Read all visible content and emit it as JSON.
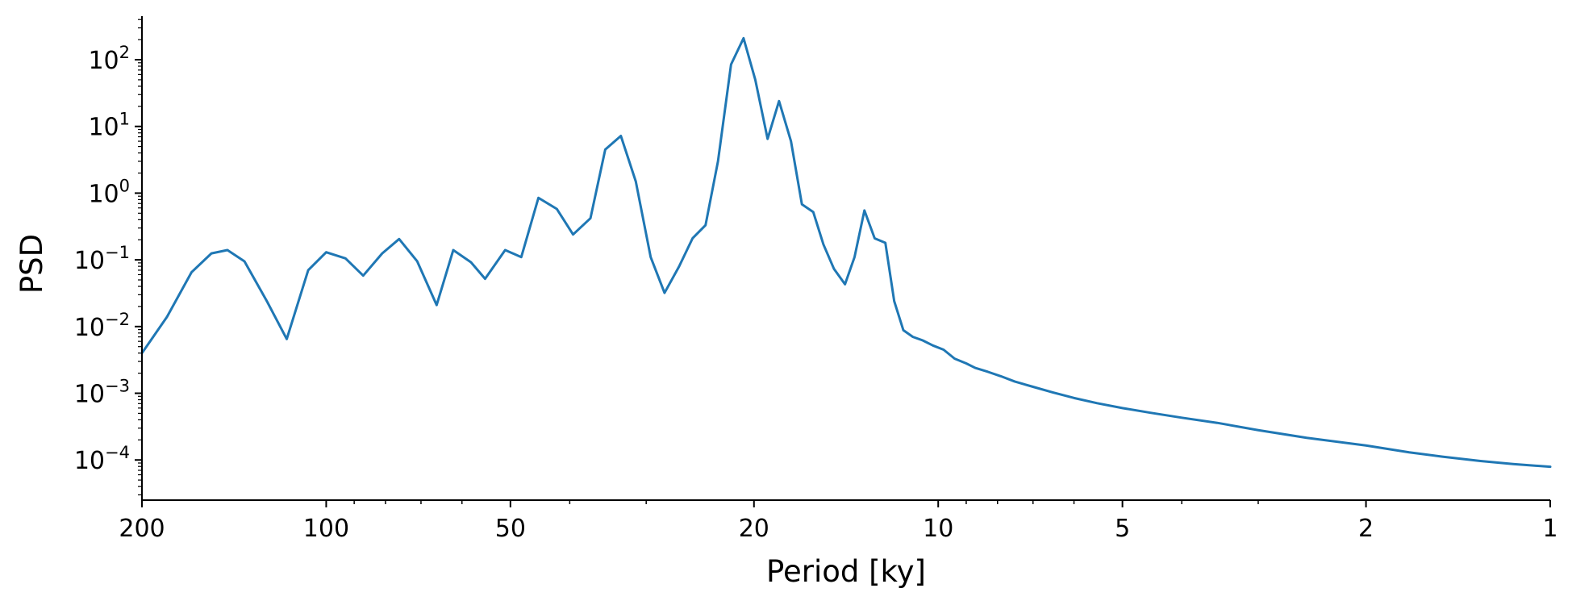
{
  "chart_data": {
    "type": "line",
    "title": "",
    "xlabel": "Period [ky]",
    "ylabel": "PSD",
    "x_scale": "log-reversed",
    "y_scale": "log",
    "xlim": [
      200,
      1
    ],
    "ylim": [
      2.5e-05,
      450
    ],
    "grid": false,
    "legend": "none",
    "line_color": "#1f77b4",
    "xticks": [
      {
        "value": 200,
        "label": "200"
      },
      {
        "value": 100,
        "label": "100"
      },
      {
        "value": 50,
        "label": "50"
      },
      {
        "value": 20,
        "label": "20"
      },
      {
        "value": 10,
        "label": "10"
      },
      {
        "value": 5,
        "label": "5"
      },
      {
        "value": 2,
        "label": "2"
      },
      {
        "value": 1,
        "label": "1"
      }
    ],
    "yticks": [
      {
        "value": 0.0001,
        "base": "10",
        "exp": "−4"
      },
      {
        "value": 0.001,
        "base": "10",
        "exp": "−3"
      },
      {
        "value": 0.01,
        "base": "10",
        "exp": "−2"
      },
      {
        "value": 0.1,
        "base": "10",
        "exp": "−1"
      },
      {
        "value": 1,
        "base": "10",
        "exp": "0"
      },
      {
        "value": 10,
        "base": "10",
        "exp": "1"
      },
      {
        "value": 100,
        "base": "10",
        "exp": "2"
      }
    ],
    "series": [
      {
        "x": [
          200,
          182,
          166,
          154,
          145,
          136,
          125,
          116,
          107,
          100,
          93,
          87,
          81,
          76,
          71,
          66,
          62,
          58,
          55,
          51,
          48,
          45,
          42,
          39.5,
          37,
          35,
          33,
          31.2,
          29.5,
          28,
          26.5,
          25.2,
          24,
          22.9,
          21.8,
          20.8,
          19.9,
          19,
          18.2,
          17.4,
          16.7,
          16,
          15.4,
          14.8,
          14.2,
          13.7,
          13.2,
          12.7,
          12.2,
          11.8,
          11.4,
          11,
          10.6,
          10.2,
          9.8,
          9.4,
          9,
          8.7,
          8.3,
          7.9,
          7.5,
          7,
          6.5,
          6,
          5.5,
          5,
          4.5,
          4,
          3.5,
          3,
          2.5,
          2,
          1.7,
          1.5,
          1.3,
          1.15,
          1.0
        ],
        "y": [
          0.004,
          0.014,
          0.065,
          0.125,
          0.14,
          0.095,
          0.024,
          0.0065,
          0.07,
          0.13,
          0.105,
          0.058,
          0.125,
          0.205,
          0.095,
          0.021,
          0.14,
          0.092,
          0.052,
          0.14,
          0.11,
          0.85,
          0.58,
          0.24,
          0.42,
          4.5,
          7.2,
          1.5,
          0.11,
          0.032,
          0.08,
          0.21,
          0.33,
          3.0,
          85,
          210,
          50,
          6.5,
          24,
          6,
          0.68,
          0.52,
          0.17,
          0.073,
          0.043,
          0.11,
          0.55,
          0.21,
          0.18,
          0.024,
          0.0088,
          0.007,
          0.0062,
          0.0052,
          0.0045,
          0.0033,
          0.0028,
          0.0024,
          0.0021,
          0.0018,
          0.0015,
          0.00125,
          0.00103,
          0.00085,
          0.00071,
          0.0006,
          0.00051,
          0.00043,
          0.00036,
          0.00028,
          0.000215,
          0.000165,
          0.00013,
          0.000112,
          9.65e-05,
          8.7e-05,
          7.9e-05
        ]
      }
    ]
  }
}
